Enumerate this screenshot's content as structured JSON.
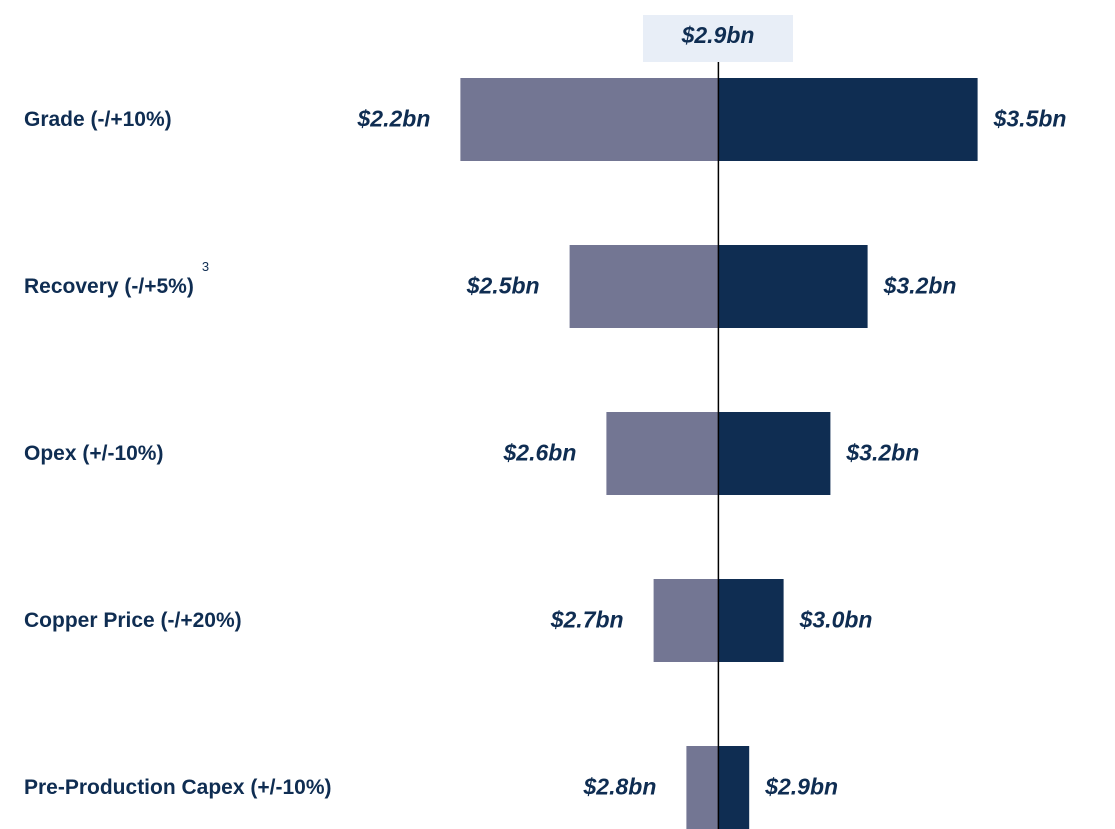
{
  "chart_data": {
    "type": "tornado",
    "base_value": 2.871,
    "base_label": "$2.9bn",
    "categories": [
      "Grade (-/+10%)",
      "Recovery (-/+5%)",
      "Opex (+/-10%)",
      "Copper Price (-/+20%)",
      "Pre-Production Capex (+/-10%)"
    ],
    "category_notes": [
      null,
      "3",
      null,
      null,
      null
    ],
    "series": [
      {
        "color": "#737693",
        "values": [
          2.226,
          2.499,
          2.591,
          2.709,
          2.791
        ],
        "value_labels": [
          "$2.2bn",
          "$2.5bn",
          "$2.6bn",
          "$2.7bn",
          "$2.8bn"
        ]
      },
      {
        "color": "#0f2d52",
        "values": [
          3.519,
          3.244,
          3.151,
          3.034,
          2.948
        ],
        "value_labels": [
          "$3.5bn",
          "$3.2bn",
          "$3.2bn",
          "$3.0bn",
          "$2.9bn"
        ]
      }
    ],
    "xlim": [
      2.18,
      3.58
    ]
  }
}
